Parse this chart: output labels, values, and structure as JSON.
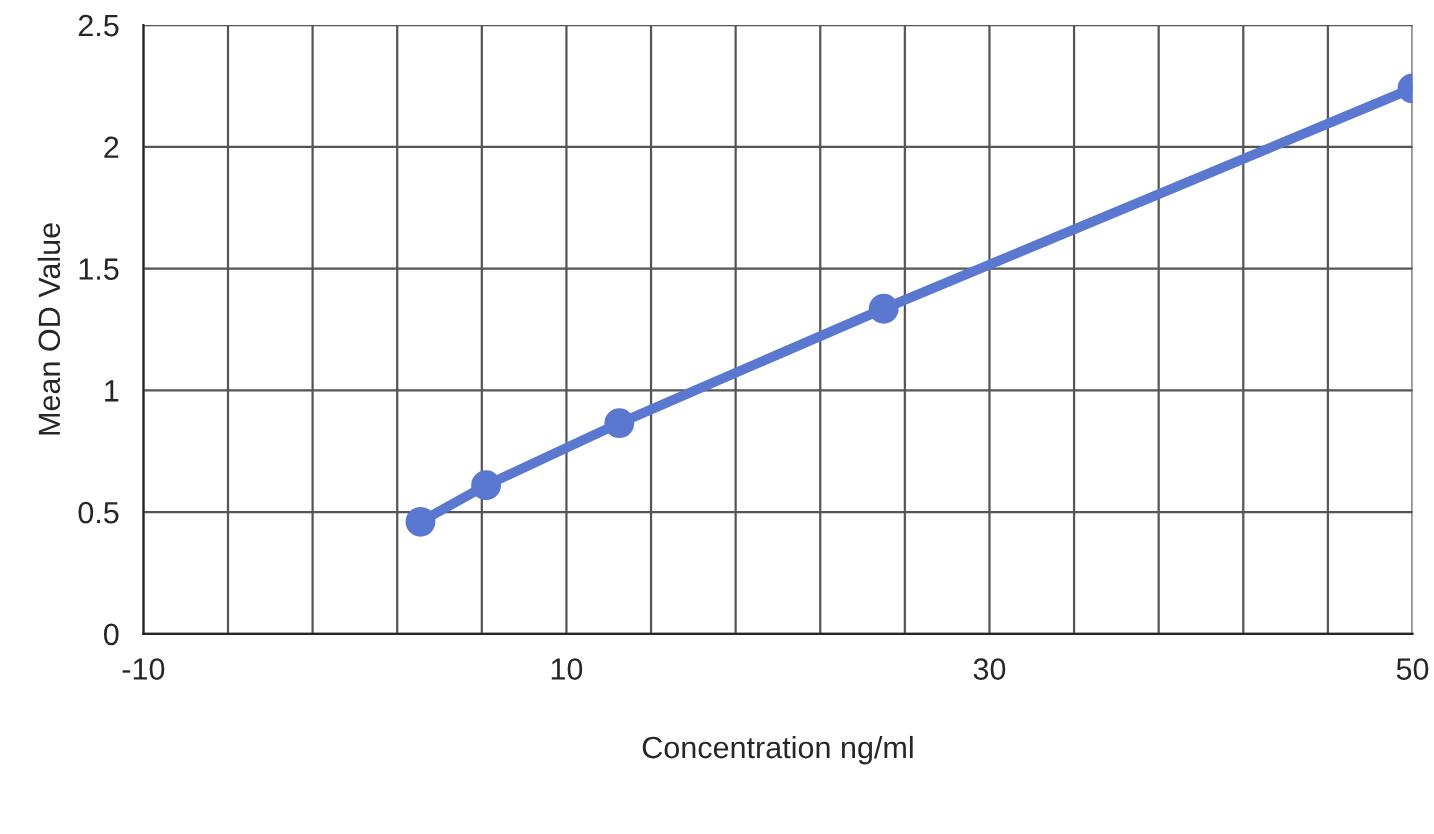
{
  "chart_data": {
    "type": "line",
    "xlabel": "Concentration ng/ml",
    "ylabel": "Mean OD Value",
    "x": [
      3.1,
      6.2,
      12.5,
      25,
      50
    ],
    "series": [
      {
        "color": "#5a78d0",
        "values": [
          0.46,
          0.61,
          0.865,
          1.335,
          2.24
        ]
      }
    ],
    "xlim": [
      -10,
      50
    ],
    "ylim": [
      0,
      2.5
    ],
    "xticks": [
      -10,
      {
        "value": -6,
        "label": null
      },
      {
        "value": -2,
        "label": null
      },
      {
        "value": 2,
        "label": null
      },
      {
        "value": 6,
        "label": null
      },
      10,
      {
        "value": 14,
        "label": null
      },
      {
        "value": 18,
        "label": null
      },
      {
        "value": 22,
        "label": null
      },
      {
        "value": 26,
        "label": null
      },
      30,
      {
        "value": 34,
        "label": null
      },
      {
        "value": 38,
        "label": null
      },
      {
        "value": 42,
        "label": null
      },
      {
        "value": 46,
        "label": null
      },
      50
    ],
    "yticks": [
      0,
      0.5,
      1,
      1.5,
      2,
      2.5
    ],
    "grid": true,
    "marker": "circle",
    "line_style": "solid",
    "legend": false
  }
}
